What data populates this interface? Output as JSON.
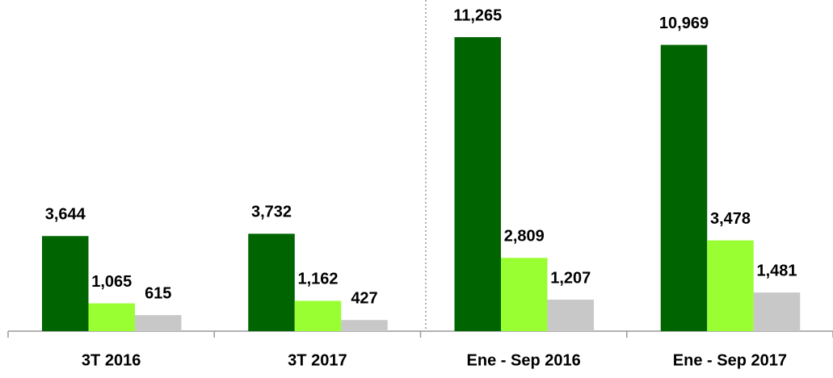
{
  "chart_data": {
    "type": "bar",
    "categories": [
      "3T 2016",
      "3T 2017",
      "Ene - Sep 2016",
      "Ene - Sep 2017"
    ],
    "series": [
      {
        "color": "#006400",
        "values": [
          3644,
          3732,
          11265,
          10969
        ],
        "value_labels": [
          "3,644",
          "3,732",
          "11,265",
          "10,969"
        ]
      },
      {
        "color": "#99ff33",
        "values": [
          1065,
          1162,
          2809,
          3478
        ],
        "value_labels": [
          "1,065",
          "1,162",
          "2,809",
          "3,478"
        ]
      },
      {
        "color": "#c8c8c8",
        "values": [
          615,
          427,
          1207,
          1481
        ],
        "value_labels": [
          "615",
          "427",
          "1,207",
          "1,481"
        ]
      }
    ],
    "ylim": [
      0,
      12000
    ]
  }
}
